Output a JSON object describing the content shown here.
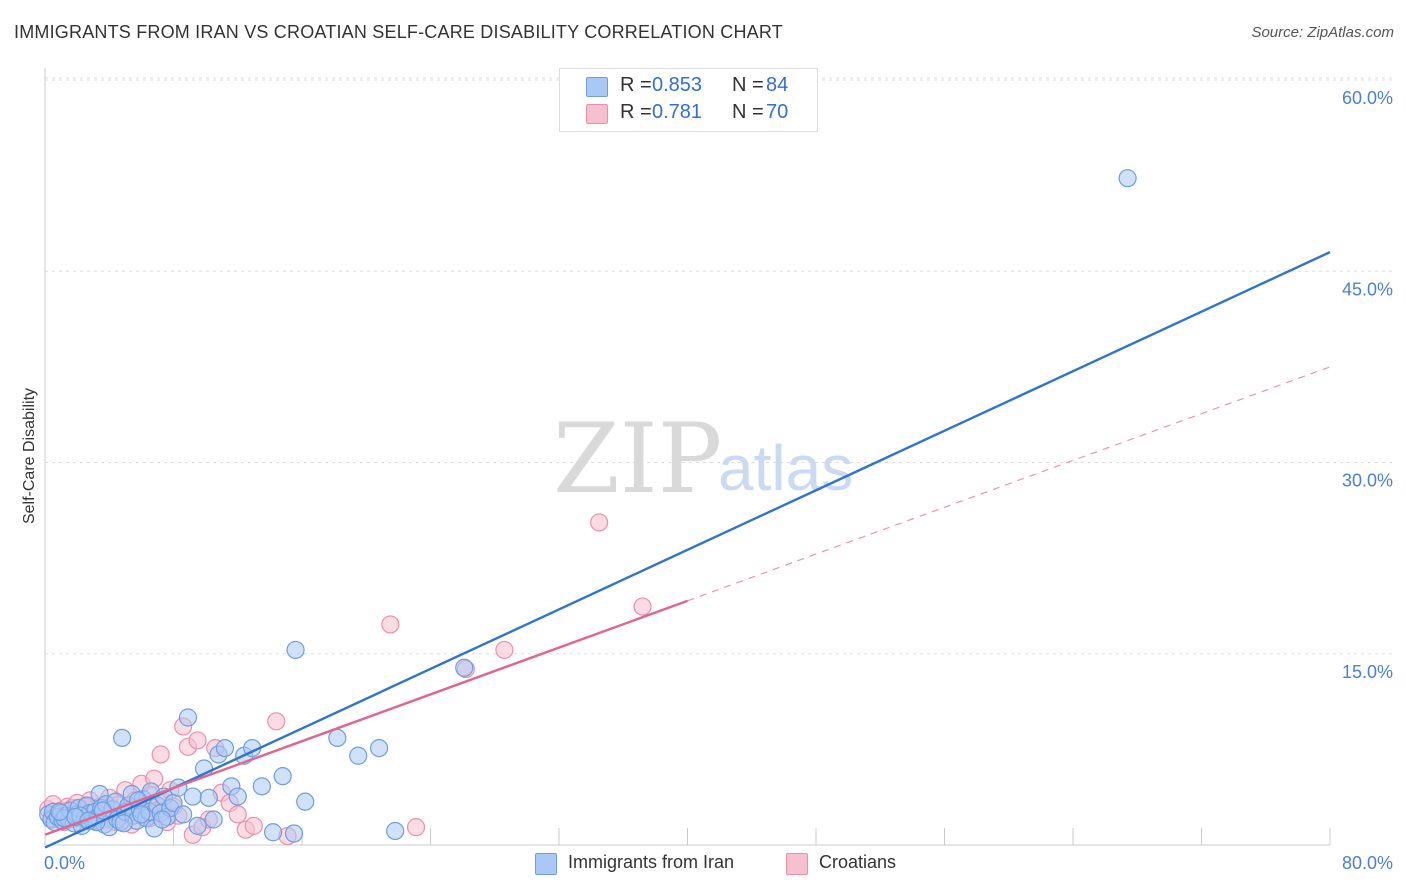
{
  "title": "IMMIGRANTS FROM IRAN VS CROATIAN SELF-CARE DISABILITY CORRELATION CHART",
  "source": "Source: ZipAtlas.com",
  "watermark": {
    "zip": "ZIP",
    "atlas": "atlas"
  },
  "legend": {
    "rows": [
      {
        "r_label": "R = ",
        "r_value": "0.853",
        "n_label": "N = ",
        "n_value": "84"
      },
      {
        "r_label": "R = ",
        "r_value": " 0.781",
        "n_label": "N = ",
        "n_value": "70"
      }
    ]
  },
  "bottom_legend": {
    "series1": "Immigrants from Iran",
    "series2": "Croatians"
  },
  "colors": {
    "iran_fill": "#a9c8f5",
    "iran_stroke": "#6f9de0",
    "iran_line": "#2f74d0",
    "cro_fill": "#f7bfd0",
    "cro_stroke": "#ec8fab",
    "cro_line": "#e0668f",
    "grid": "#dddddd",
    "axis_text": "#4a7fd6"
  },
  "chart_data": {
    "type": "scatter",
    "title": "IMMIGRANTS FROM IRAN VS CROATIAN SELF-CARE DISABILITY CORRELATION CHART",
    "xlabel": "",
    "ylabel": "Self-Care Disability",
    "xlim": [
      0,
      80
    ],
    "ylim": [
      0,
      62.5
    ],
    "x_tick_labels": [
      "0.0%",
      "80.0%"
    ],
    "y_ticks": [
      15,
      30,
      45,
      60
    ],
    "y_tick_labels": [
      "15.0%",
      "30.0%",
      "45.0%",
      "60.0%"
    ],
    "legend_position": "top-center",
    "series": [
      {
        "name": "Immigrants from Iran",
        "R": 0.853,
        "N": 84,
        "trend": {
          "x0": 0,
          "y0": -0.2,
          "x1": 80,
          "y1": 46.5,
          "solid_to": 80
        },
        "points": [
          [
            0.2,
            2.4
          ],
          [
            0.4,
            2.0
          ],
          [
            0.5,
            2.6
          ],
          [
            0.6,
            1.8
          ],
          [
            0.8,
            2.2
          ],
          [
            1.0,
            2.5
          ],
          [
            1.1,
            1.9
          ],
          [
            1.3,
            2.3
          ],
          [
            1.5,
            2.0
          ],
          [
            1.6,
            2.7
          ],
          [
            1.8,
            1.7
          ],
          [
            2.0,
            2.4
          ],
          [
            2.1,
            2.9
          ],
          [
            2.3,
            1.5
          ],
          [
            2.5,
            2.1
          ],
          [
            2.6,
            3.1
          ],
          [
            2.8,
            2.5
          ],
          [
            3.0,
            1.9
          ],
          [
            3.1,
            2.6
          ],
          [
            3.3,
            2.2
          ],
          [
            3.4,
            4.0
          ],
          [
            3.5,
            2.9
          ],
          [
            3.7,
            1.6
          ],
          [
            3.8,
            3.2
          ],
          [
            4.0,
            1.4
          ],
          [
            4.2,
            2.8
          ],
          [
            4.4,
            3.4
          ],
          [
            4.5,
            2.0
          ],
          [
            4.7,
            1.8
          ],
          [
            4.8,
            8.4
          ],
          [
            5.0,
            2.6
          ],
          [
            5.2,
            3.1
          ],
          [
            5.4,
            4.0
          ],
          [
            5.5,
            2.3
          ],
          [
            5.7,
            1.9
          ],
          [
            5.9,
            2.8
          ],
          [
            6.1,
            3.6
          ],
          [
            6.3,
            2.1
          ],
          [
            6.5,
            2.6
          ],
          [
            6.6,
            4.2
          ],
          [
            6.8,
            1.3
          ],
          [
            7.0,
            3.1
          ],
          [
            7.2,
            2.5
          ],
          [
            7.4,
            3.8
          ],
          [
            7.6,
            2.2
          ],
          [
            7.8,
            2.9
          ],
          [
            8.0,
            3.3
          ],
          [
            8.3,
            4.5
          ],
          [
            8.6,
            2.4
          ],
          [
            8.9,
            10.0
          ],
          [
            9.2,
            3.8
          ],
          [
            9.5,
            1.5
          ],
          [
            9.9,
            6.0
          ],
          [
            10.2,
            3.7
          ],
          [
            10.5,
            2.0
          ],
          [
            10.8,
            7.1
          ],
          [
            11.2,
            7.6
          ],
          [
            11.6,
            4.6
          ],
          [
            12.0,
            3.8
          ],
          [
            12.4,
            7.0
          ],
          [
            12.9,
            7.6
          ],
          [
            13.5,
            4.6
          ],
          [
            14.2,
            1.0
          ],
          [
            14.8,
            5.4
          ],
          [
            15.5,
            0.9
          ],
          [
            15.6,
            15.3
          ],
          [
            16.2,
            3.4
          ],
          [
            18.2,
            8.4
          ],
          [
            19.5,
            7.0
          ],
          [
            20.8,
            7.6
          ],
          [
            21.8,
            1.1
          ],
          [
            26.1,
            13.9
          ],
          [
            67.4,
            52.3
          ],
          [
            1.2,
            2.1
          ],
          [
            2.2,
            2.3
          ],
          [
            3.2,
            1.8
          ],
          [
            0.9,
            2.6
          ],
          [
            1.9,
            2.2
          ],
          [
            2.7,
            1.9
          ],
          [
            3.6,
            2.7
          ],
          [
            4.9,
            1.7
          ],
          [
            5.8,
            3.5
          ],
          [
            7.3,
            2.0
          ],
          [
            6.0,
            2.4
          ]
        ]
      },
      {
        "name": "Croatians",
        "R": 0.781,
        "N": 70,
        "trend": {
          "x0": 0,
          "y0": 0.8,
          "x1": 80,
          "y1": 37.5,
          "solid_to": 40
        },
        "points": [
          [
            0.2,
            2.8
          ],
          [
            0.4,
            2.1
          ],
          [
            0.5,
            3.2
          ],
          [
            0.7,
            2.4
          ],
          [
            0.9,
            2.0
          ],
          [
            1.0,
            2.7
          ],
          [
            1.2,
            1.8
          ],
          [
            1.4,
            3.0
          ],
          [
            1.6,
            2.3
          ],
          [
            1.7,
            2.9
          ],
          [
            1.9,
            2.1
          ],
          [
            2.0,
            3.3
          ],
          [
            2.2,
            2.5
          ],
          [
            2.4,
            2.0
          ],
          [
            2.6,
            2.8
          ],
          [
            2.8,
            3.5
          ],
          [
            3.0,
            2.2
          ],
          [
            3.2,
            2.9
          ],
          [
            3.4,
            2.4
          ],
          [
            3.6,
            3.1
          ],
          [
            3.8,
            2.0
          ],
          [
            4.0,
            3.7
          ],
          [
            4.2,
            2.6
          ],
          [
            4.4,
            1.8
          ],
          [
            4.6,
            3.2
          ],
          [
            4.8,
            2.3
          ],
          [
            5.0,
            4.3
          ],
          [
            5.2,
            2.8
          ],
          [
            5.4,
            1.6
          ],
          [
            5.6,
            3.5
          ],
          [
            5.8,
            2.5
          ],
          [
            6.0,
            4.8
          ],
          [
            6.2,
            3.0
          ],
          [
            6.4,
            2.2
          ],
          [
            6.6,
            3.9
          ],
          [
            6.8,
            5.2
          ],
          [
            7.0,
            2.7
          ],
          [
            7.2,
            7.1
          ],
          [
            7.4,
            3.4
          ],
          [
            7.6,
            1.8
          ],
          [
            7.8,
            4.3
          ],
          [
            8.0,
            3.0
          ],
          [
            8.3,
            2.3
          ],
          [
            8.6,
            9.3
          ],
          [
            8.9,
            7.7
          ],
          [
            9.2,
            0.8
          ],
          [
            9.5,
            8.2
          ],
          [
            9.8,
            1.4
          ],
          [
            10.2,
            2.0
          ],
          [
            10.6,
            7.6
          ],
          [
            11.0,
            4.1
          ],
          [
            11.5,
            3.3
          ],
          [
            12.0,
            2.4
          ],
          [
            12.5,
            1.2
          ],
          [
            13.0,
            1.5
          ],
          [
            14.4,
            9.7
          ],
          [
            15.1,
            0.7
          ],
          [
            21.5,
            17.3
          ],
          [
            23.1,
            1.4
          ],
          [
            26.2,
            13.8
          ],
          [
            28.6,
            15.3
          ],
          [
            34.5,
            25.3
          ],
          [
            37.2,
            18.7
          ],
          [
            0.8,
            2.5
          ],
          [
            1.5,
            2.2
          ],
          [
            2.5,
            3.0
          ],
          [
            3.5,
            2.6
          ],
          [
            4.5,
            2.0
          ],
          [
            5.5,
            2.9
          ],
          [
            6.5,
            2.1
          ]
        ]
      }
    ]
  }
}
